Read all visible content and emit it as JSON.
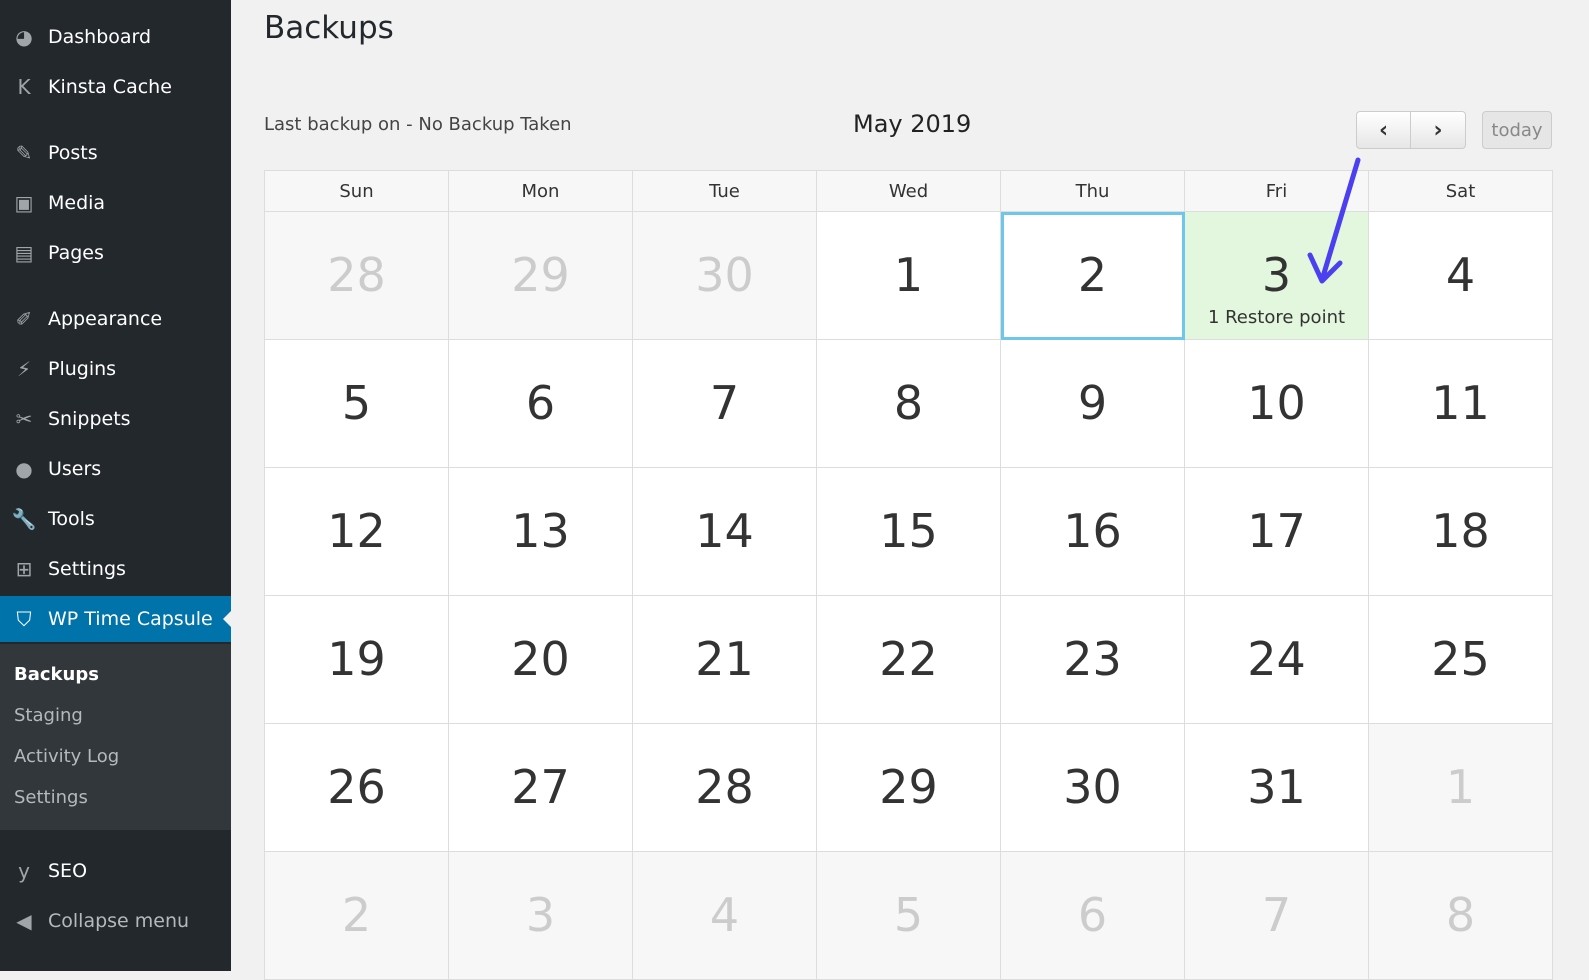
{
  "sidebar": {
    "items": [
      {
        "label": "Dashboard",
        "icon": "dashboard-icon",
        "g": "◕"
      },
      {
        "label": "Kinsta Cache",
        "icon": "kinsta-icon",
        "g": "K"
      },
      {
        "label": "Posts",
        "icon": "pin-icon",
        "g": "✎"
      },
      {
        "label": "Media",
        "icon": "media-icon",
        "g": "▣"
      },
      {
        "label": "Pages",
        "icon": "pages-icon",
        "g": "▤"
      },
      {
        "label": "Appearance",
        "icon": "brush-icon",
        "g": "✐"
      },
      {
        "label": "Plugins",
        "icon": "plugin-icon",
        "g": "⚡"
      },
      {
        "label": "Snippets",
        "icon": "scissors-icon",
        "g": "✂"
      },
      {
        "label": "Users",
        "icon": "user-icon",
        "g": "●"
      },
      {
        "label": "Tools",
        "icon": "wrench-icon",
        "g": "🔧"
      },
      {
        "label": "Settings",
        "icon": "settings-icon",
        "g": "⊞"
      },
      {
        "label": "WP Time Capsule",
        "icon": "shield-icon",
        "g": "⛉",
        "active": true
      },
      {
        "label": "SEO",
        "icon": "yoast-icon",
        "g": "y"
      },
      {
        "label": "Collapse menu",
        "icon": "collapse-icon",
        "g": "◀"
      }
    ],
    "submenu": [
      "Backups",
      "Staging",
      "Activity Log",
      "Settings"
    ]
  },
  "page": {
    "title": "Backups",
    "last_backup": "Last backup on - No Backup Taken",
    "month": "May 2019",
    "prev": "‹",
    "next": "›",
    "today": "today"
  },
  "calendar": {
    "weekdays": [
      "Sun",
      "Mon",
      "Tue",
      "Wed",
      "Thu",
      "Fri",
      "Sat"
    ],
    "weeks": [
      [
        28,
        29,
        30,
        1,
        2,
        3,
        4
      ],
      [
        5,
        6,
        7,
        8,
        9,
        10,
        11
      ],
      [
        12,
        13,
        14,
        15,
        16,
        17,
        18
      ],
      [
        19,
        20,
        21,
        22,
        23,
        24,
        25
      ],
      [
        26,
        27,
        28,
        29,
        30,
        31,
        1
      ],
      [
        2,
        3,
        4,
        5,
        6,
        7,
        8
      ]
    ],
    "today_day": 2,
    "restore_day": 3,
    "restore_label": "1 Restore point"
  },
  "colors": {
    "accent": "#0073aa",
    "restore_bg": "#e2f7dd",
    "today_border": "#6ec6ea",
    "arrow": "#4b3ff0"
  }
}
